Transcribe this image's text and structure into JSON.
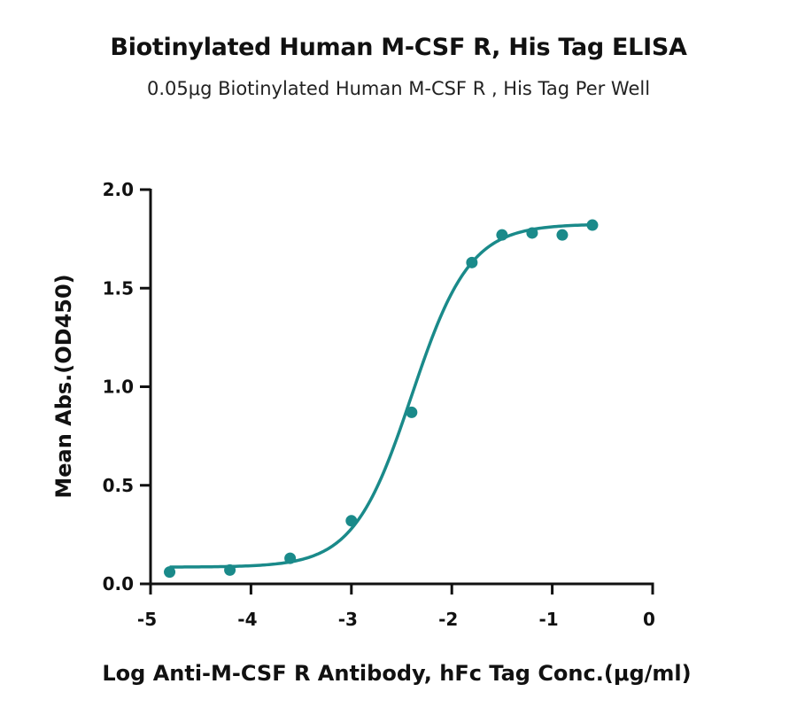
{
  "chart_data": {
    "type": "scatter",
    "title": "Biotinylated Human M-CSF R, His Tag ELISA",
    "subtitle": "0.05μg Biotinylated Human M-CSF R , His Tag Per Well",
    "xlabel": "Log  Anti-M-CSF R Antibody, hFc Tag Conc.(μg/ml)",
    "ylabel": "Mean Abs.(OD450)",
    "xlim": [
      -5,
      0
    ],
    "ylim": [
      0,
      2.0
    ],
    "x_ticks": [
      -5,
      -4,
      -3,
      -2,
      -1,
      0
    ],
    "x_tick_labels": [
      "-5",
      "-4",
      "-3",
      "-2",
      "-1",
      "0"
    ],
    "y_ticks": [
      0,
      0.5,
      1.0,
      1.5,
      2.0
    ],
    "y_tick_labels": [
      "0.0",
      "0.5",
      "1.0",
      "1.5",
      "2.0"
    ],
    "grid": false,
    "series": [
      {
        "color": "#1a8a8a",
        "x": [
          -4.81,
          -4.21,
          -3.61,
          -3.0,
          -2.4,
          -1.8,
          -1.5,
          -1.2,
          -0.9,
          -0.6
        ],
        "y": [
          0.06,
          0.07,
          0.13,
          0.32,
          0.87,
          1.63,
          1.77,
          1.78,
          1.77,
          1.82
        ],
        "fit": {
          "model": "4PL",
          "bottom": 0.085,
          "top": 1.825,
          "logEC50": -2.4,
          "hill": 1.5
        }
      }
    ]
  }
}
